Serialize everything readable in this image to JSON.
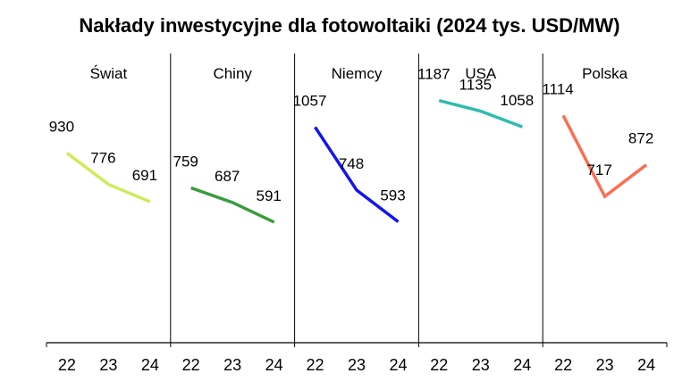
{
  "chart_data": {
    "type": "line",
    "title": "Nakłady inwestycyjne dla fotowoltaiki (2024 tys. USD/MW)",
    "xlabel": "",
    "ylabel": "",
    "ylim": [
      0,
      1400
    ],
    "grid": false,
    "categories": [
      "22",
      "23",
      "24"
    ],
    "series": [
      {
        "name": "Świat",
        "values": [
          930,
          776,
          691
        ],
        "color": "#ccec5a"
      },
      {
        "name": "Chiny",
        "values": [
          759,
          687,
          591
        ],
        "color": "#3a9c3c"
      },
      {
        "name": "Niemcy",
        "values": [
          1057,
          748,
          593
        ],
        "color": "#1414ee"
      },
      {
        "name": "USA",
        "values": [
          1187,
          1135,
          1058
        ],
        "color": "#2ebcac"
      },
      {
        "name": "Polska",
        "values": [
          1114,
          717,
          872
        ],
        "color": "#fb6e52"
      }
    ]
  }
}
